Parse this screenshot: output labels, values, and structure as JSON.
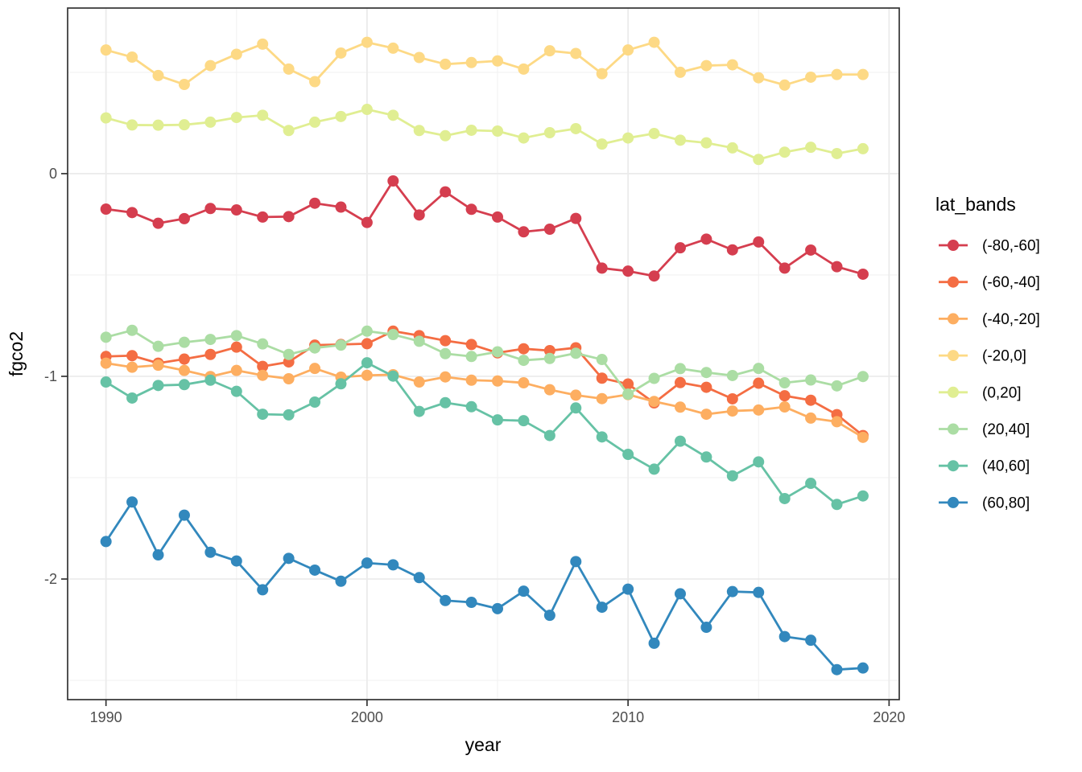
{
  "chart_data": {
    "type": "line",
    "title": "",
    "xlabel": "year",
    "ylabel": "fgco2",
    "legend_title": "lat_bands",
    "legend_position": "right",
    "grid": true,
    "xlim": [
      1988.53,
      2020.39
    ],
    "ylim": [
      -2.595,
      0.817
    ],
    "x_ticks": [
      1990,
      2000,
      2010,
      2020
    ],
    "x_tick_labels": [
      "1990",
      "2000",
      "2010",
      "2020"
    ],
    "x_minor": [
      1995,
      2005,
      2015
    ],
    "y_ticks": [
      0,
      -1,
      -2
    ],
    "y_tick_labels": [
      "0",
      "-1",
      "-2"
    ],
    "y_minor": [
      0.5,
      -0.5,
      -1.5,
      -2.5
    ],
    "x": [
      1990,
      1991,
      1992,
      1993,
      1994,
      1995,
      1996,
      1997,
      1998,
      1999,
      2000,
      2001,
      2002,
      2003,
      2004,
      2005,
      2006,
      2007,
      2008,
      2009,
      2010,
      2011,
      2012,
      2013,
      2014,
      2015,
      2016,
      2017,
      2018,
      2019
    ],
    "series": [
      {
        "name": "(-80,-60]",
        "color": "#D53E4F",
        "values": [
          -0.175,
          -0.192,
          -0.245,
          -0.222,
          -0.172,
          -0.179,
          -0.214,
          -0.212,
          -0.146,
          -0.165,
          -0.241,
          -0.036,
          -0.204,
          -0.09,
          -0.176,
          -0.214,
          -0.287,
          -0.274,
          -0.221,
          -0.466,
          -0.481,
          -0.505,
          -0.366,
          -0.323,
          -0.376,
          -0.337,
          -0.466,
          -0.377,
          -0.459,
          -0.496
        ]
      },
      {
        "name": "(-60,-40]",
        "color": "#F46D43",
        "values": [
          -0.902,
          -0.898,
          -0.935,
          -0.915,
          -0.892,
          -0.856,
          -0.951,
          -0.929,
          -0.846,
          -0.843,
          -0.839,
          -0.777,
          -0.799,
          -0.824,
          -0.843,
          -0.884,
          -0.864,
          -0.873,
          -0.859,
          -1.009,
          -1.038,
          -1.131,
          -1.031,
          -1.054,
          -1.111,
          -1.034,
          -1.096,
          -1.118,
          -1.189,
          -1.292
        ]
      },
      {
        "name": "(-40,-20]",
        "color": "#FDAE61",
        "values": [
          -0.935,
          -0.955,
          -0.945,
          -0.971,
          -1.001,
          -0.971,
          -0.995,
          -1.012,
          -0.961,
          -1.004,
          -0.995,
          -0.992,
          -1.028,
          -1.003,
          -1.019,
          -1.023,
          -1.032,
          -1.066,
          -1.093,
          -1.11,
          -1.09,
          -1.124,
          -1.152,
          -1.187,
          -1.171,
          -1.166,
          -1.151,
          -1.206,
          -1.224,
          -1.301
        ]
      },
      {
        "name": "(-20,0]",
        "color": "#FDD985",
        "values": [
          0.61,
          0.575,
          0.484,
          0.44,
          0.533,
          0.589,
          0.639,
          0.516,
          0.454,
          0.595,
          0.648,
          0.619,
          0.573,
          0.54,
          0.548,
          0.556,
          0.516,
          0.606,
          0.593,
          0.493,
          0.61,
          0.648,
          0.5,
          0.533,
          0.537,
          0.473,
          0.437,
          0.476,
          0.489,
          0.489
        ]
      },
      {
        "name": "(0,20]",
        "color": "#E0EE92",
        "values": [
          0.275,
          0.24,
          0.239,
          0.241,
          0.254,
          0.277,
          0.288,
          0.213,
          0.254,
          0.282,
          0.317,
          0.288,
          0.213,
          0.187,
          0.214,
          0.21,
          0.176,
          0.202,
          0.222,
          0.146,
          0.176,
          0.198,
          0.165,
          0.152,
          0.127,
          0.07,
          0.106,
          0.13,
          0.099,
          0.123
        ]
      },
      {
        "name": "(20,40]",
        "color": "#ABDDA4",
        "values": [
          -0.807,
          -0.773,
          -0.852,
          -0.832,
          -0.818,
          -0.799,
          -0.84,
          -0.892,
          -0.86,
          -0.846,
          -0.777,
          -0.794,
          -0.827,
          -0.888,
          -0.902,
          -0.879,
          -0.921,
          -0.912,
          -0.886,
          -0.917,
          -1.088,
          -1.01,
          -0.962,
          -0.981,
          -0.996,
          -0.961,
          -1.032,
          -1.018,
          -1.047,
          -1.001
        ]
      },
      {
        "name": "(40,60]",
        "color": "#66C2A5",
        "values": [
          -1.028,
          -1.107,
          -1.045,
          -1.041,
          -1.019,
          -1.074,
          -1.187,
          -1.19,
          -1.127,
          -1.037,
          -0.933,
          -0.999,
          -1.173,
          -1.13,
          -1.15,
          -1.215,
          -1.219,
          -1.292,
          -1.156,
          -1.299,
          -1.385,
          -1.458,
          -1.32,
          -1.398,
          -1.491,
          -1.422,
          -1.603,
          -1.528,
          -1.632,
          -1.59
        ]
      },
      {
        "name": "(60,80]",
        "color": "#3288BD",
        "values": [
          -1.815,
          -1.62,
          -1.881,
          -1.685,
          -1.868,
          -1.911,
          -2.053,
          -1.898,
          -1.956,
          -2.011,
          -1.921,
          -1.93,
          -1.993,
          -2.106,
          -2.115,
          -2.146,
          -2.06,
          -2.179,
          -1.914,
          -2.139,
          -2.05,
          -2.317,
          -2.073,
          -2.238,
          -2.062,
          -2.066,
          -2.284,
          -2.302,
          -2.447,
          -2.439
        ]
      }
    ],
    "style": {
      "panel_border_color": "#333333",
      "grid_major_color": "#EBEBEB",
      "grid_minor_color": "#F2F2F2",
      "tick_color": "#333333",
      "tick_label_color": "#4d4d4d"
    }
  }
}
